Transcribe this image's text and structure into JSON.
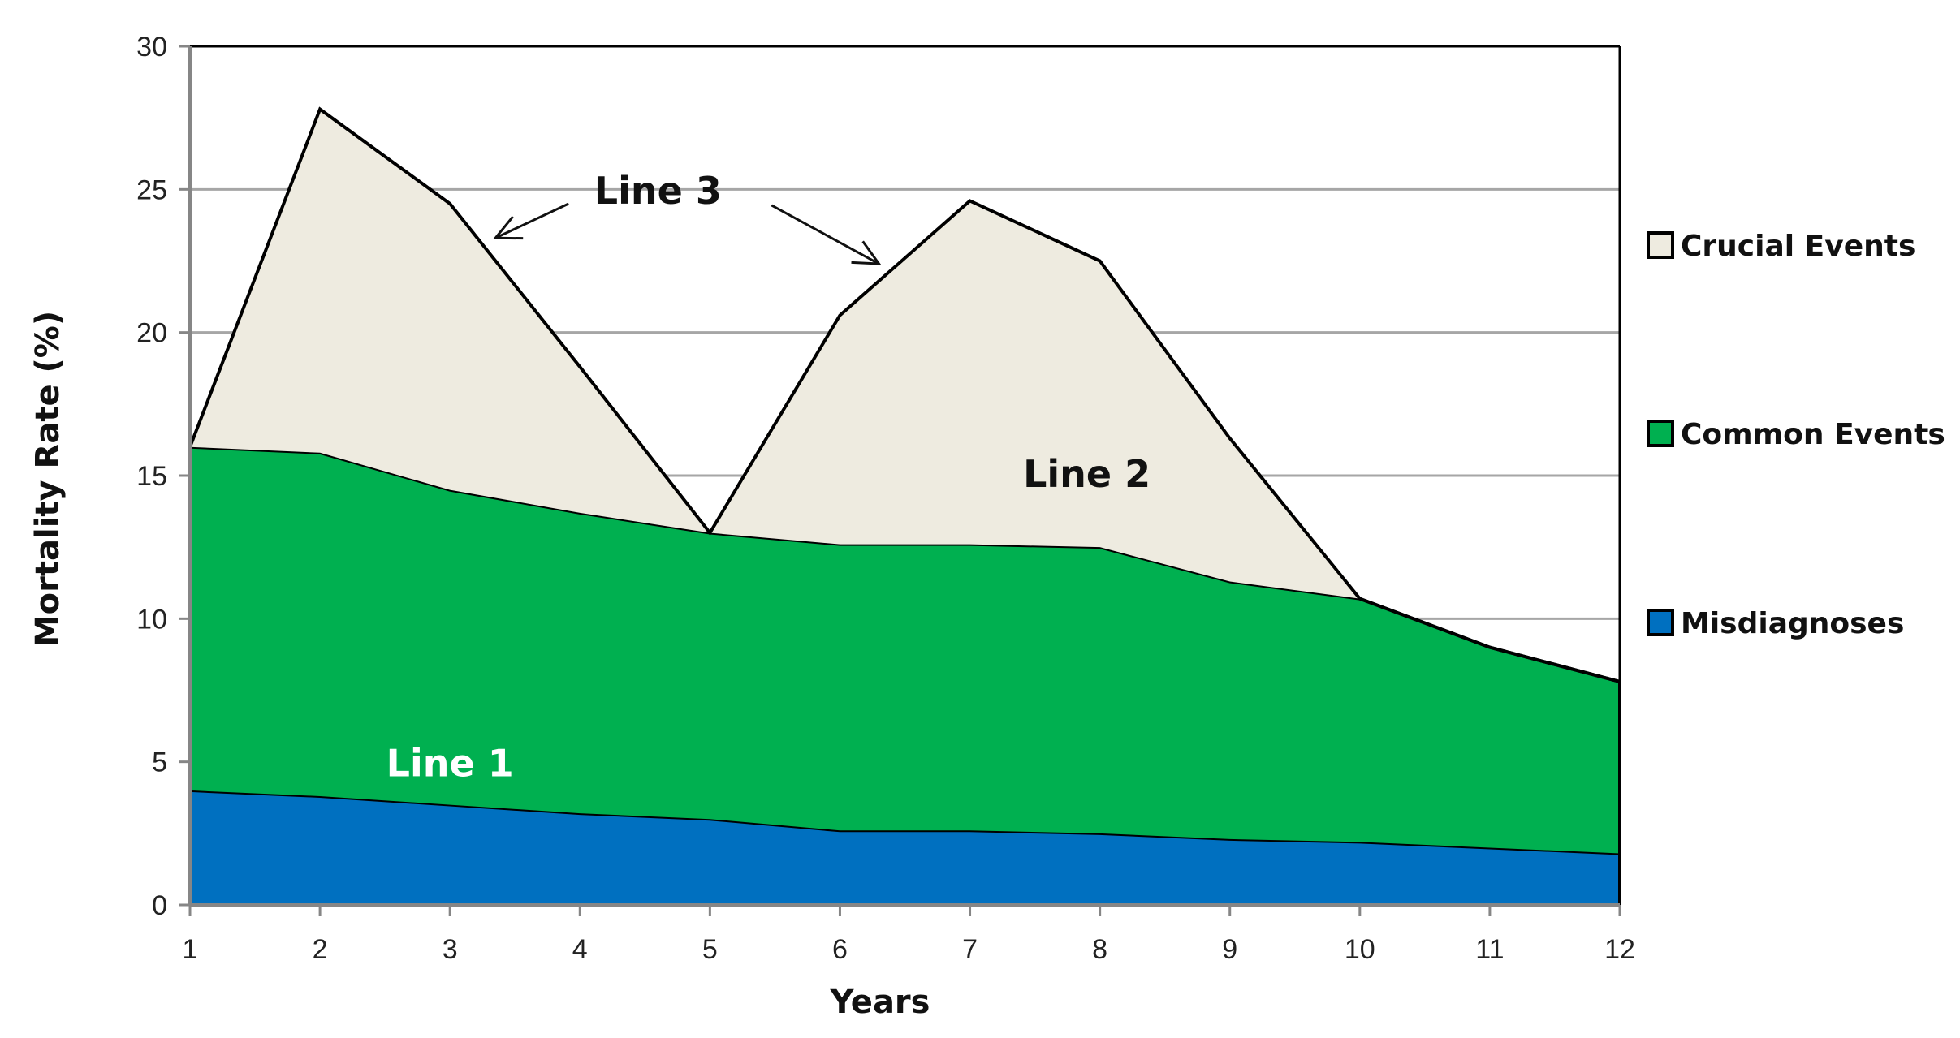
{
  "chart_data": {
    "type": "area",
    "stacked": true,
    "title": "",
    "xlabel": "Years",
    "ylabel": "Mortality Rate (%)",
    "x": [
      1,
      2,
      3,
      4,
      5,
      6,
      7,
      8,
      9,
      10,
      11,
      12
    ],
    "ylim": [
      0,
      30
    ],
    "yticks": [
      0,
      5,
      10,
      15,
      20,
      25,
      30
    ],
    "grid": "horizontal",
    "legend_position": "right",
    "series": [
      {
        "name": "Misdiagnoses",
        "color": "#0070C0",
        "values": [
          4.0,
          3.8,
          3.5,
          3.2,
          3.0,
          2.6,
          2.6,
          2.5,
          2.3,
          2.2,
          2.0,
          1.8
        ]
      },
      {
        "name": "Common Events",
        "color": "#00B050",
        "values": [
          12.0,
          12.0,
          11.0,
          10.5,
          10.0,
          10.0,
          10.0,
          10.0,
          9.0,
          8.5,
          7.0,
          6.0
        ]
      },
      {
        "name": "Crucial Events",
        "color": "#EEEBE0",
        "values": [
          0.0,
          12.0,
          10.0,
          5.1,
          0.0,
          8.0,
          12.0,
          10.0,
          5.0,
          0.0,
          0.0,
          0.0
        ]
      }
    ],
    "annotations": [
      {
        "text": "Line 1",
        "x": 3.0,
        "y": 4.5,
        "color": "#ffffff"
      },
      {
        "text": "Line 2",
        "x": 7.9,
        "y": 14.6,
        "color": "#111111"
      },
      {
        "text": "Line 3",
        "x": 4.6,
        "y": 24.5,
        "color": "#111111",
        "arrows_to": [
          [
            3.35,
            23.3
          ],
          [
            6.3,
            22.4
          ]
        ]
      }
    ]
  },
  "legend": {
    "items": [
      {
        "label": "Crucial Events",
        "color": "#EEEBE0"
      },
      {
        "label": "Common Events",
        "color": "#00B050"
      },
      {
        "label": "Misdiagnoses",
        "color": "#0070C0"
      }
    ]
  },
  "axes": {
    "x_title": "Years",
    "y_title": "Mortality Rate (%)"
  }
}
